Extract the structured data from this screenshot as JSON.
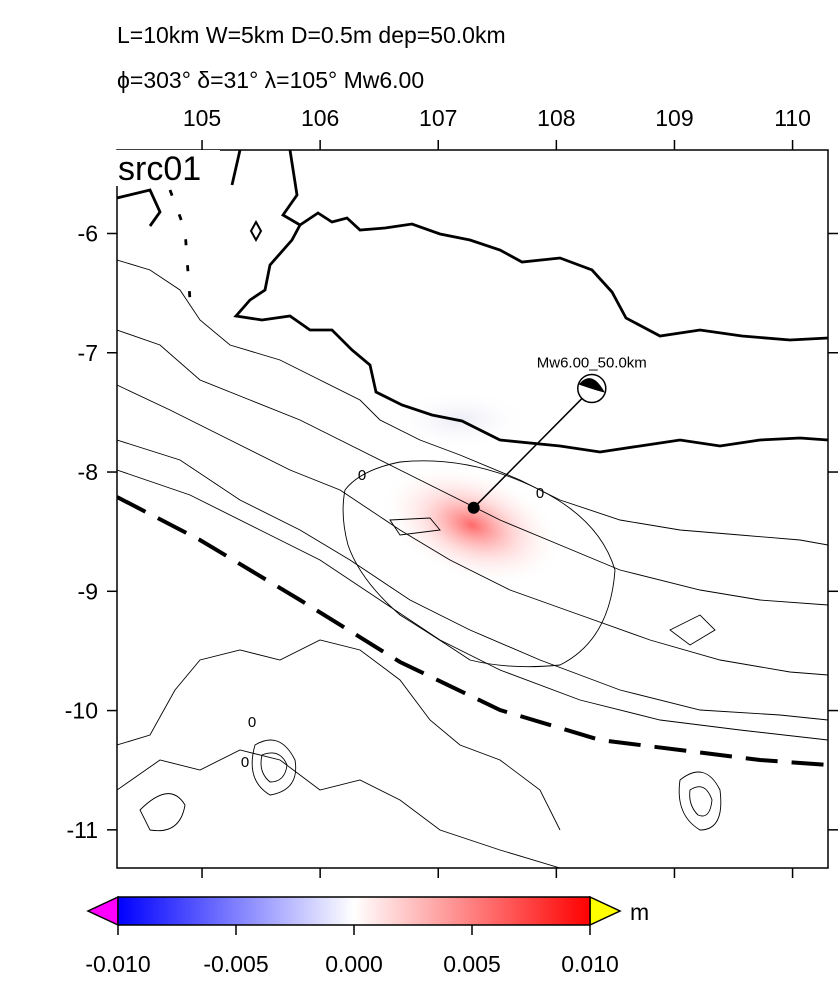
{
  "title_lines": [
    "L=10km W=5km D=0.5m dep=50.0km",
    "ϕ=303° δ=31° λ=105° Mw6.00"
  ],
  "map": {
    "label": "src01",
    "xlim": [
      104.28,
      110.3
    ],
    "ylim": [
      -5.3,
      -11.32
    ],
    "xticks": [
      105,
      106,
      107,
      108,
      109,
      110
    ],
    "yticks": [
      -6,
      -7,
      -8,
      -9,
      -10,
      -11
    ],
    "epicenter": {
      "lon": 107.3,
      "lat": -8.3
    },
    "focal": {
      "lon": 108.3,
      "lat": -7.3,
      "label": "Mw6.00_50.0km"
    },
    "contour_labels": [
      "0",
      "0",
      "0",
      "0"
    ]
  },
  "colorbar": {
    "lim": [
      -0.01,
      0.01
    ],
    "ticks": [
      {
        "value": -0.01,
        "label": "-0.010"
      },
      {
        "value": -0.005,
        "label": "-0.005"
      },
      {
        "value": 0,
        "label": "0.000"
      },
      {
        "value": 0.005,
        "label": "0.005"
      },
      {
        "value": 0.01,
        "label": "0.010"
      }
    ],
    "unit": "m"
  }
}
